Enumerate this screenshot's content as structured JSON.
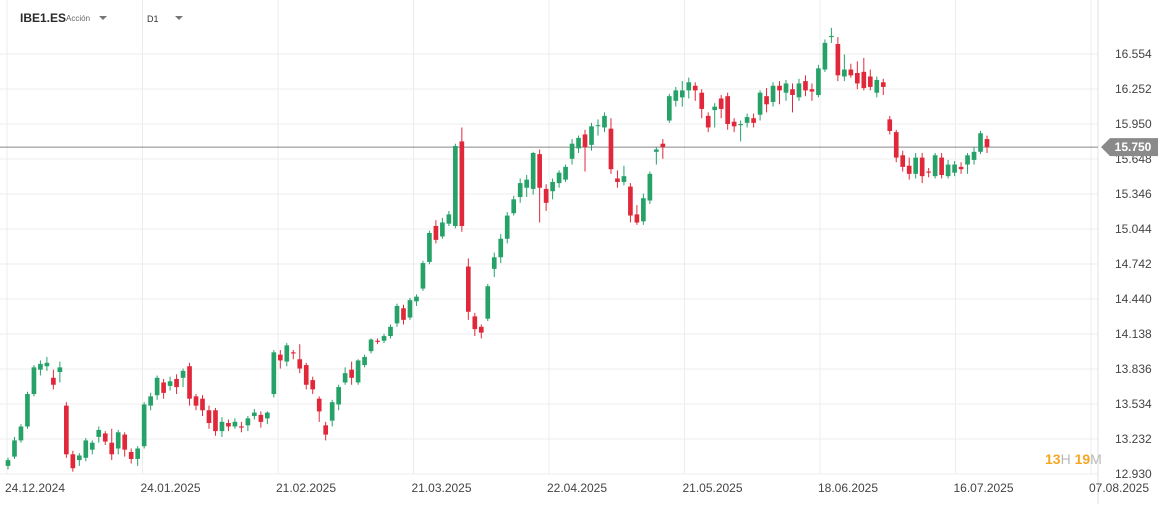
{
  "header": {
    "symbol": "IBE1.ES",
    "instrument_type": "Acción",
    "timeframe": "D1",
    "symbol_caret_icon": "caret-down-icon",
    "timeframe_caret_icon": "caret-down-icon"
  },
  "countdown": {
    "hours": "13",
    "hours_unit": "H",
    "minutes": "19",
    "minutes_unit": "M"
  },
  "colors": {
    "up": "#26a269",
    "down": "#e0283a",
    "grid": "#ececec",
    "axis_text": "#444444",
    "price_line": "#888888",
    "price_tag": "#8a8a8a"
  },
  "chart_data": {
    "type": "candlestick",
    "title": "",
    "xlabel": "",
    "ylabel": "",
    "ylim": [
      12.93,
      16.8
    ],
    "y_ticks": [
      "16.554",
      "16.252",
      "15.950",
      "15.648",
      "15.346",
      "15.044",
      "14.742",
      "14.440",
      "14.138",
      "13.836",
      "13.534",
      "13.232",
      "12.930"
    ],
    "x_ticks": [
      "24.12.2024",
      "24.01.2025",
      "21.02.2025",
      "21.03.2025",
      "22.04.2025",
      "21.05.2025",
      "18.06.2025",
      "16.07.2025",
      "07.08.2025"
    ],
    "grid": true,
    "current_price": "15.750",
    "candles": [
      [
        13.0,
        13.05,
        12.97,
        13.07
      ],
      [
        13.08,
        13.22,
        13.06,
        13.25
      ],
      [
        13.22,
        13.34,
        13.2,
        13.36
      ],
      [
        13.34,
        13.62,
        13.32,
        13.64
      ],
      [
        13.62,
        13.85,
        13.6,
        13.87
      ],
      [
        13.83,
        13.88,
        13.78,
        13.91
      ],
      [
        13.86,
        13.89,
        13.82,
        13.94
      ],
      [
        13.76,
        13.7,
        13.66,
        13.83
      ],
      [
        13.81,
        13.85,
        13.72,
        13.9
      ],
      [
        13.52,
        13.1,
        13.07,
        13.55
      ],
      [
        13.1,
        12.98,
        12.95,
        13.13
      ],
      [
        13.05,
        13.09,
        13.0,
        13.11
      ],
      [
        13.07,
        13.22,
        13.04,
        13.24
      ],
      [
        13.14,
        13.2,
        13.1,
        13.22
      ],
      [
        13.25,
        13.31,
        13.2,
        13.34
      ],
      [
        13.28,
        13.21,
        13.18,
        13.3
      ],
      [
        13.2,
        13.1,
        13.05,
        13.32
      ],
      [
        13.15,
        13.29,
        13.1,
        13.31
      ],
      [
        13.27,
        13.14,
        13.08,
        13.29
      ],
      [
        13.12,
        13.06,
        13.02,
        13.15
      ],
      [
        13.06,
        13.15,
        13.0,
        13.17
      ],
      [
        13.17,
        13.53,
        13.15,
        13.55
      ],
      [
        13.52,
        13.6,
        13.48,
        13.63
      ],
      [
        13.61,
        13.76,
        13.57,
        13.78
      ],
      [
        13.72,
        13.63,
        13.58,
        13.75
      ],
      [
        13.69,
        13.73,
        13.65,
        13.77
      ],
      [
        13.75,
        13.68,
        13.62,
        13.79
      ],
      [
        13.76,
        13.82,
        13.68,
        13.84
      ],
      [
        13.86,
        13.58,
        13.52,
        13.89
      ],
      [
        13.6,
        13.52,
        13.48,
        13.62
      ],
      [
        13.58,
        13.48,
        13.43,
        13.61
      ],
      [
        13.48,
        13.37,
        13.32,
        13.52
      ],
      [
        13.48,
        13.3,
        13.26,
        13.5
      ],
      [
        13.3,
        13.38,
        13.25,
        13.42
      ],
      [
        13.37,
        13.34,
        13.3,
        13.4
      ],
      [
        13.34,
        13.38,
        13.32,
        13.41
      ],
      [
        13.34,
        13.33,
        13.29,
        13.38
      ],
      [
        13.35,
        13.41,
        13.3,
        13.43
      ],
      [
        13.43,
        13.46,
        13.4,
        13.49
      ],
      [
        13.44,
        13.38,
        13.33,
        13.47
      ],
      [
        13.41,
        13.46,
        13.36,
        13.47
      ],
      [
        13.62,
        13.98,
        13.59,
        14.0
      ],
      [
        13.96,
        13.91,
        13.84,
        14.0
      ],
      [
        13.9,
        14.04,
        13.86,
        14.06
      ],
      [
        13.98,
        13.97,
        13.92,
        14.0
      ],
      [
        13.92,
        13.84,
        13.8,
        14.05
      ],
      [
        13.87,
        13.7,
        13.66,
        13.89
      ],
      [
        13.74,
        13.66,
        13.62,
        13.77
      ],
      [
        13.58,
        13.47,
        13.38,
        13.6
      ],
      [
        13.35,
        13.27,
        13.22,
        13.38
      ],
      [
        13.39,
        13.55,
        13.34,
        13.57
      ],
      [
        13.53,
        13.68,
        13.48,
        13.7
      ],
      [
        13.72,
        13.8,
        13.7,
        13.85
      ],
      [
        13.83,
        13.76,
        13.7,
        13.9
      ],
      [
        13.72,
        13.91,
        13.7,
        13.92
      ],
      [
        13.87,
        13.94,
        13.85,
        13.96
      ],
      [
        13.99,
        14.09,
        13.97,
        14.1
      ],
      [
        14.08,
        14.07,
        14.05,
        14.1
      ],
      [
        14.08,
        14.12,
        14.06,
        14.14
      ],
      [
        14.12,
        14.2,
        14.1,
        14.22
      ],
      [
        14.23,
        14.38,
        14.2,
        14.4
      ],
      [
        14.36,
        14.26,
        14.22,
        14.39
      ],
      [
        14.28,
        14.43,
        14.26,
        14.45
      ],
      [
        14.42,
        14.46,
        14.38,
        14.48
      ],
      [
        14.53,
        14.75,
        14.51,
        14.77
      ],
      [
        14.76,
        15.01,
        14.74,
        15.03
      ],
      [
        15.07,
        14.95,
        14.92,
        15.12
      ],
      [
        14.98,
        15.1,
        14.96,
        15.14
      ],
      [
        15.09,
        15.17,
        15.07,
        15.2
      ],
      [
        15.07,
        15.76,
        15.05,
        15.78
      ],
      [
        15.8,
        15.07,
        15.02,
        15.92
      ],
      [
        14.72,
        14.33,
        14.26,
        14.79
      ],
      [
        14.29,
        14.18,
        14.12,
        14.32
      ],
      [
        14.2,
        14.15,
        14.1,
        14.22
      ],
      [
        14.27,
        14.55,
        14.25,
        14.57
      ],
      [
        14.7,
        14.8,
        14.63,
        14.84
      ],
      [
        14.8,
        14.96,
        14.75,
        15.0
      ],
      [
        14.96,
        15.16,
        14.92,
        15.19
      ],
      [
        15.18,
        15.3,
        15.16,
        15.33
      ],
      [
        15.32,
        15.44,
        15.27,
        15.48
      ],
      [
        15.4,
        15.47,
        15.32,
        15.51
      ],
      [
        15.39,
        15.7,
        15.34,
        15.71
      ],
      [
        15.69,
        15.4,
        15.1,
        15.73
      ],
      [
        15.39,
        15.27,
        15.2,
        15.43
      ],
      [
        15.37,
        15.45,
        15.3,
        15.48
      ],
      [
        15.44,
        15.53,
        15.4,
        15.55
      ],
      [
        15.47,
        15.58,
        15.45,
        15.6
      ],
      [
        15.65,
        15.78,
        15.6,
        15.82
      ],
      [
        15.74,
        15.83,
        15.7,
        15.85
      ],
      [
        15.86,
        15.75,
        15.54,
        15.9
      ],
      [
        15.77,
        15.93,
        15.72,
        15.96
      ],
      [
        15.94,
        15.94,
        15.85,
        15.99
      ],
      [
        15.92,
        16.02,
        15.88,
        16.05
      ],
      [
        15.91,
        15.56,
        15.52,
        16.0
      ],
      [
        15.48,
        15.45,
        15.4,
        15.55
      ],
      [
        15.45,
        15.5,
        15.42,
        15.59
      ],
      [
        15.41,
        15.16,
        15.1,
        15.44
      ],
      [
        15.17,
        15.1,
        15.08,
        15.25
      ],
      [
        15.11,
        15.31,
        15.08,
        15.35
      ],
      [
        15.29,
        15.52,
        15.26,
        15.54
      ],
      [
        15.71,
        15.73,
        15.6,
        15.75
      ],
      [
        15.78,
        15.75,
        15.65,
        15.82
      ],
      [
        15.98,
        16.19,
        15.96,
        16.21
      ],
      [
        16.15,
        16.24,
        16.1,
        16.27
      ],
      [
        16.18,
        16.24,
        16.1,
        16.32
      ],
      [
        16.24,
        16.31,
        16.17,
        16.35
      ],
      [
        16.28,
        16.24,
        16.15,
        16.31
      ],
      [
        16.22,
        16.08,
        16.0,
        16.25
      ],
      [
        16.02,
        15.92,
        15.88,
        16.05
      ],
      [
        16.07,
        16.1,
        15.92,
        16.13
      ],
      [
        16.17,
        16.08,
        16.0,
        16.2
      ],
      [
        16.19,
        15.95,
        15.9,
        16.22
      ],
      [
        15.97,
        15.93,
        15.88,
        16.0
      ],
      [
        15.94,
        15.95,
        15.8,
        15.98
      ],
      [
        15.96,
        16.01,
        15.92,
        16.04
      ],
      [
        16.0,
        15.96,
        15.92,
        16.04
      ],
      [
        16.03,
        16.22,
        15.98,
        16.24
      ],
      [
        16.19,
        16.12,
        16.05,
        16.26
      ],
      [
        16.14,
        16.28,
        16.1,
        16.31
      ],
      [
        16.28,
        16.24,
        16.12,
        16.32
      ],
      [
        16.22,
        16.3,
        16.15,
        16.33
      ],
      [
        16.25,
        16.2,
        16.05,
        16.3
      ],
      [
        16.18,
        16.3,
        16.15,
        16.34
      ],
      [
        16.32,
        16.24,
        16.19,
        16.37
      ],
      [
        16.25,
        16.23,
        16.15,
        16.3
      ],
      [
        16.2,
        16.43,
        16.18,
        16.46
      ],
      [
        16.42,
        16.65,
        16.4,
        16.68
      ],
      [
        16.7,
        16.71,
        16.65,
        16.78
      ],
      [
        16.64,
        16.37,
        16.32,
        16.7
      ],
      [
        16.36,
        16.42,
        16.32,
        16.55
      ],
      [
        16.42,
        16.37,
        16.35,
        16.47
      ],
      [
        16.39,
        16.3,
        16.25,
        16.49
      ],
      [
        16.4,
        16.26,
        16.24,
        16.52
      ],
      [
        16.36,
        16.27,
        16.24,
        16.42
      ],
      [
        16.22,
        16.33,
        16.18,
        16.36
      ],
      [
        16.31,
        16.27,
        16.2,
        16.34
      ],
      [
        15.99,
        15.89,
        15.86,
        16.02
      ],
      [
        15.88,
        15.66,
        15.62,
        15.9
      ],
      [
        15.68,
        15.58,
        15.54,
        15.72
      ],
      [
        15.59,
        15.52,
        15.47,
        15.66
      ],
      [
        15.52,
        15.66,
        15.48,
        15.7
      ],
      [
        15.66,
        15.5,
        15.44,
        15.7
      ],
      [
        15.54,
        15.53,
        15.49,
        15.57
      ],
      [
        15.5,
        15.68,
        15.48,
        15.7
      ],
      [
        15.66,
        15.51,
        15.48,
        15.7
      ],
      [
        15.5,
        15.6,
        15.48,
        15.64
      ],
      [
        15.53,
        15.6,
        15.5,
        15.63
      ],
      [
        15.58,
        15.56,
        15.52,
        15.62
      ],
      [
        15.6,
        15.68,
        15.52,
        15.7
      ],
      [
        15.64,
        15.71,
        15.6,
        15.75
      ],
      [
        15.71,
        15.87,
        15.69,
        15.89
      ],
      [
        15.82,
        15.75,
        15.7,
        15.85
      ]
    ]
  }
}
